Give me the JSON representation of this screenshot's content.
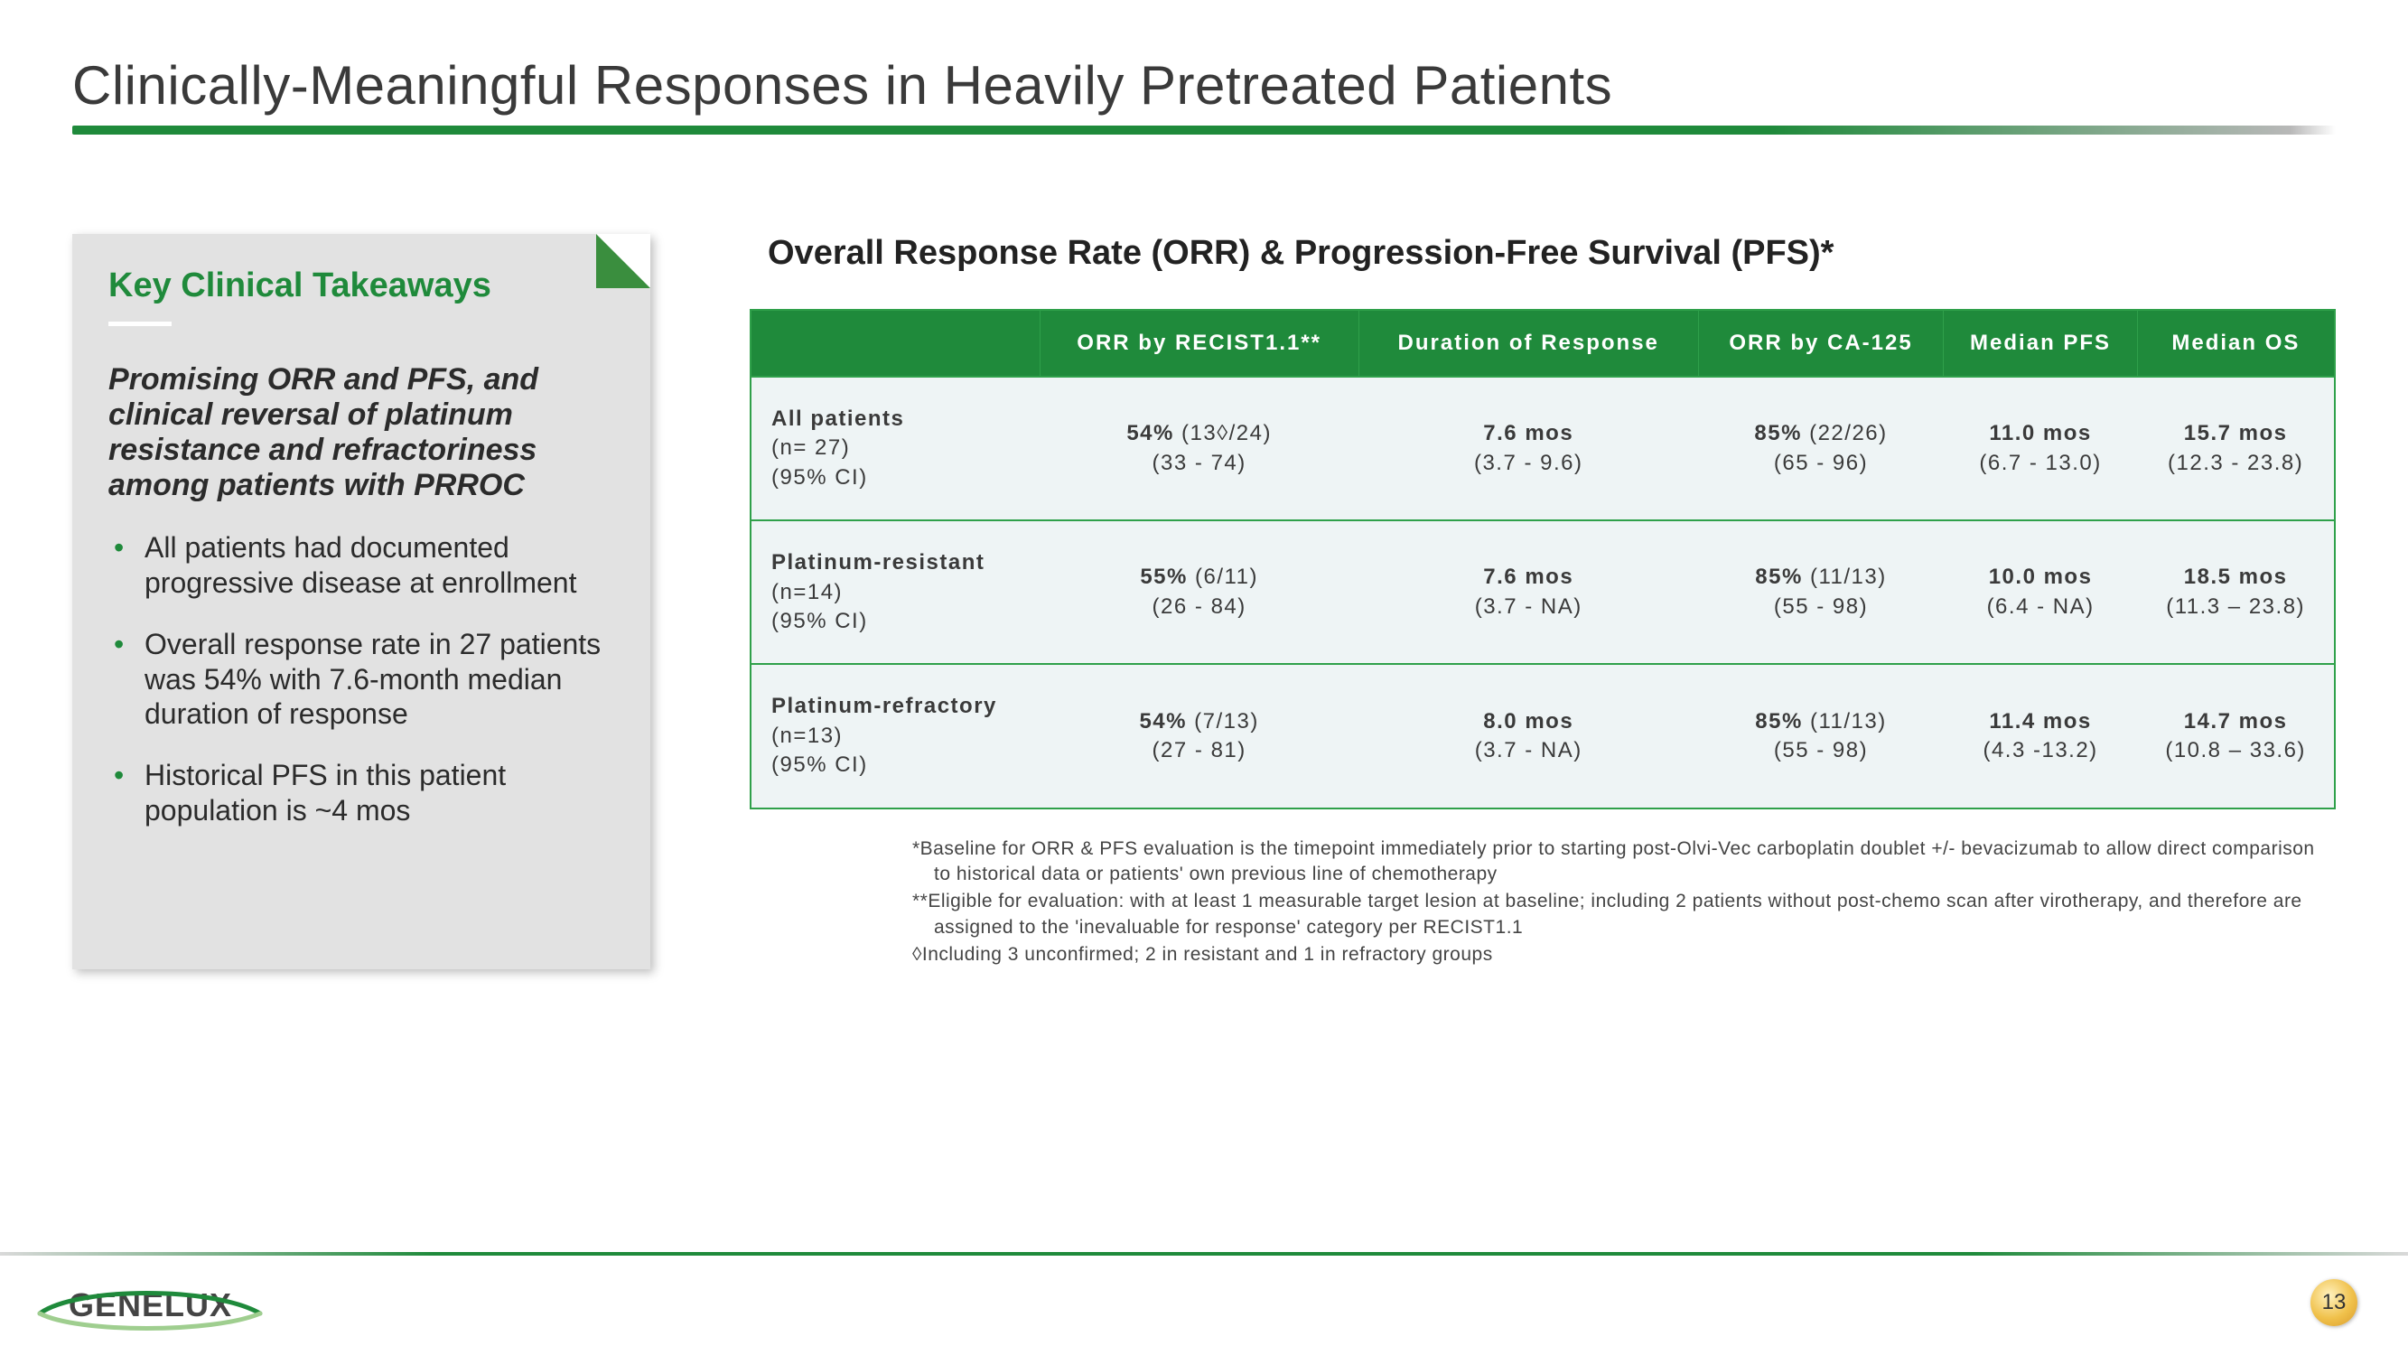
{
  "slide": {
    "title": "Clinically-Meaningful Responses in Heavily Pretreated Patients",
    "page_number": "13"
  },
  "card": {
    "heading": "Key Clinical Takeaways",
    "lead": "Promising ORR and PFS, and clinical reversal of platinum resistance and refractoriness among patients with PRROC",
    "bullets": [
      "All patients had documented progressive disease at enrollment",
      "Overall response rate in 27 patients was 54% with 7.6-month median duration of response",
      "Historical PFS in this patient population is ~4 mos"
    ]
  },
  "table": {
    "title": "Overall Response Rate (ORR) & Progression-Free Survival (PFS)*",
    "columns": [
      "",
      "ORR by RECIST1.1**",
      "Duration of Response",
      "ORR by CA-125",
      "Median PFS",
      "Median OS"
    ],
    "rows": [
      {
        "label": "All patients",
        "label2": "(n= 27)",
        "label3": "(95% CI)",
        "cells": [
          {
            "line1_pct": "54%",
            "line1_rest": " (13◊/24)",
            "line2": "(33 - 74)"
          },
          {
            "line1_pct": "7.6 mos",
            "line1_rest": "",
            "line2": "(3.7 - 9.6)"
          },
          {
            "line1_pct": "85%",
            "line1_rest": " (22/26)",
            "line2": "(65 - 96)"
          },
          {
            "line1_pct": "11.0 mos",
            "line1_rest": "",
            "line2": "(6.7 - 13.0)"
          },
          {
            "line1_pct": "15.7 mos",
            "line1_rest": "",
            "line2": "(12.3 - 23.8)"
          }
        ]
      },
      {
        "label": "Platinum-resistant",
        "label2": "(n=14)",
        "label3": "(95% CI)",
        "cells": [
          {
            "line1_pct": "55%",
            "line1_rest": " (6/11)",
            "line2": "(26 - 84)"
          },
          {
            "line1_pct": "7.6 mos",
            "line1_rest": "",
            "line2": "(3.7 - NA)"
          },
          {
            "line1_pct": "85%",
            "line1_rest": " (11/13)",
            "line2": "(55 - 98)"
          },
          {
            "line1_pct": "10.0 mos",
            "line1_rest": "",
            "line2": "(6.4 - NA)"
          },
          {
            "line1_pct": "18.5 mos",
            "line1_rest": "",
            "line2": "(11.3 – 23.8)"
          }
        ]
      },
      {
        "label": "Platinum-refractory",
        "label2": "(n=13)",
        "label3": "(95% CI)",
        "cells": [
          {
            "line1_pct": "54%",
            "line1_rest": " (7/13)",
            "line2": "(27 - 81)"
          },
          {
            "line1_pct": "8.0 mos",
            "line1_rest": "",
            "line2": "(3.7 - NA)"
          },
          {
            "line1_pct": "85%",
            "line1_rest": " (11/13)",
            "line2": "(55 - 98)"
          },
          {
            "line1_pct": "11.4 mos",
            "line1_rest": "",
            "line2": "(4.3 -13.2)"
          },
          {
            "line1_pct": "14.7 mos",
            "line1_rest": "",
            "line2": "(10.8 – 33.6)"
          }
        ]
      }
    ]
  },
  "footnotes": [
    "*Baseline for ORR & PFS evaluation is the timepoint immediately prior to starting post-Olvi-Vec carboplatin doublet +/- bevacizumab to allow direct comparison to historical data or patients' own previous line of chemotherapy",
    "**Eligible for evaluation: with at least 1 measurable target lesion at baseline; including 2 patients without post-chemo scan after virotherapy, and therefore are assigned to the 'inevaluable for response' category per RECIST1.1",
    "◊Including 3 unconfirmed; 2 in resistant and 1 in refractory groups"
  ],
  "logo_text": "GENELUX",
  "colors": {
    "brand_green": "#1f8a3b",
    "header_green": "#1f8a3b",
    "table_border": "#2fa04a",
    "cell_bg": "#eef4f5",
    "card_bg": "#e2e2e2",
    "text": "#3a3a3a"
  }
}
